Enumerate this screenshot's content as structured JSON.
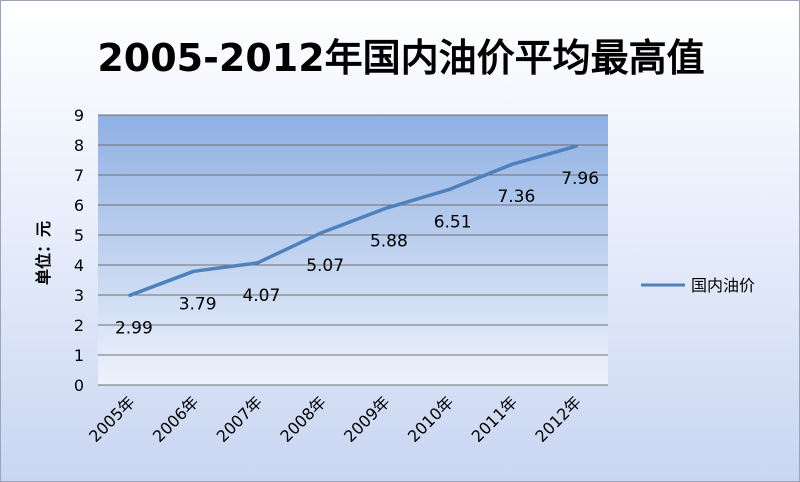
{
  "chart_data": {
    "type": "line",
    "title": "2005-2012年国内油价平均最高值",
    "ylabel": "单位：元",
    "xlabel": "",
    "categories": [
      "2005年",
      "2006年",
      "2007年",
      "2008年",
      "2009年",
      "2010年",
      "2011年",
      "2012年"
    ],
    "series": [
      {
        "name": "国内油价",
        "values": [
          2.99,
          3.79,
          4.07,
          5.07,
          5.88,
          6.51,
          7.36,
          7.96
        ],
        "color": "#4f81bd"
      }
    ],
    "data_labels": [
      "2.99",
      "3.79",
      "4.07",
      "5.07",
      "5.88",
      "6.51",
      "7.36",
      "7.96"
    ],
    "ylim": [
      0,
      9
    ],
    "yticks": [
      "0",
      "1",
      "2",
      "3",
      "4",
      "5",
      "6",
      "7",
      "8",
      "9"
    ],
    "grid": true,
    "legend_position": "right"
  }
}
